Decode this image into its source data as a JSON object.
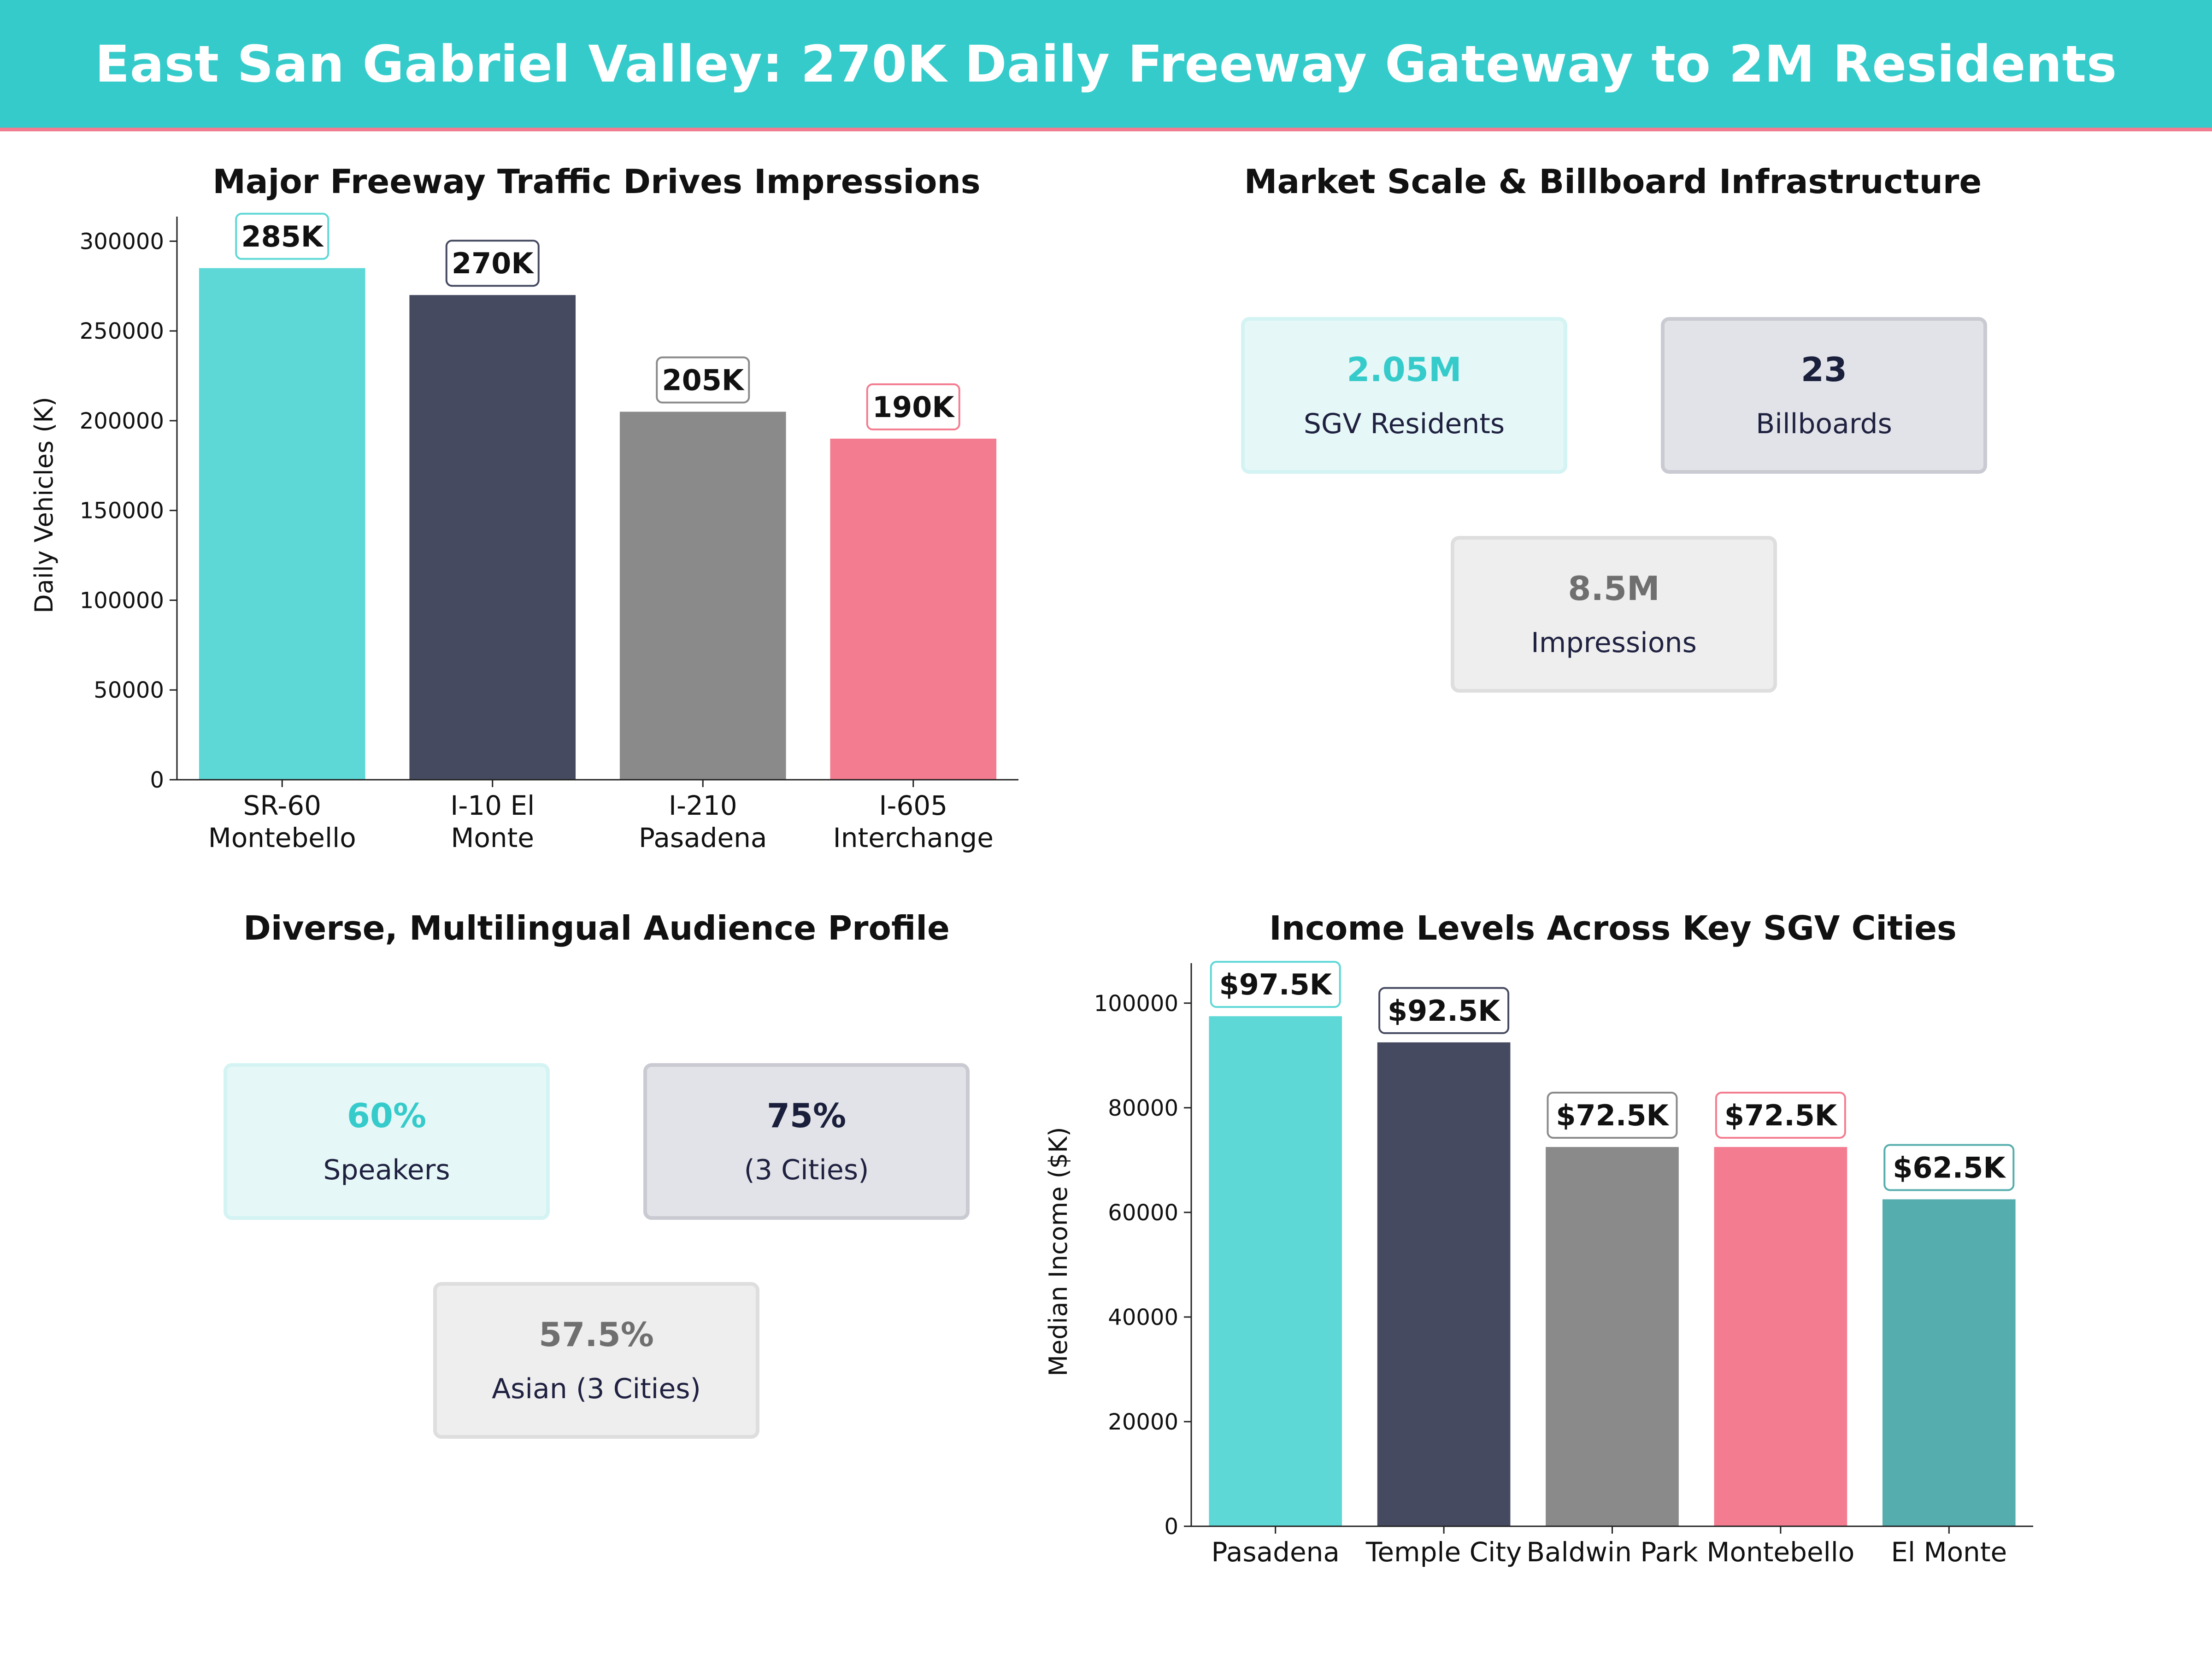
{
  "banner": {
    "title": "East San Gabriel Valley: 270K Daily Freeway Gateway to 2M Residents"
  },
  "colors": {
    "banner": "#36CBCB",
    "accent": "#F47C90"
  },
  "panels": {
    "market": {
      "title": "Market Scale & Billboard Infrastructure",
      "cards": [
        {
          "value": "2.05M",
          "label": "SGV Residents"
        },
        {
          "value": "23",
          "label": "Billboards"
        },
        {
          "value": "8.5M",
          "label": "Impressions"
        }
      ]
    },
    "audience": {
      "title": "Diverse, Multilingual Audience Profile",
      "cards": [
        {
          "value": "60%",
          "label": "Speakers"
        },
        {
          "value": "75%",
          "label": "(3 Cities)"
        },
        {
          "value": "57.5%",
          "label": "Asian (3 Cities)"
        }
      ]
    }
  },
  "chart_data": [
    {
      "id": "traffic",
      "type": "bar",
      "title": "Major Freeway Traffic Drives Impressions",
      "categories": [
        [
          "SR-60",
          "Montebello"
        ],
        [
          "I-10 El",
          "Monte"
        ],
        [
          "I-210",
          "Pasadena"
        ],
        [
          "I-605",
          "Interchange"
        ]
      ],
      "values": [
        285000,
        270000,
        205000,
        190000
      ],
      "data_labels": [
        "285K",
        "270K",
        "205K",
        "190K"
      ],
      "colors": [
        "#5DD8D6",
        "#464A60",
        "#8A8A8A",
        "#F47C90"
      ],
      "label_borders": [
        "#5DD8D6",
        "#464A60",
        "#8A8A8A",
        "#F47C90"
      ],
      "xlabel": "",
      "ylabel": "Daily Vehicles (K)",
      "ylim": [
        0,
        306000
      ],
      "yticks": [
        0,
        50000,
        100000,
        150000,
        200000,
        250000,
        300000
      ],
      "ytick_labels": [
        "0",
        "50000",
        "100000",
        "150000",
        "200000",
        "250000",
        "300000"
      ],
      "grid": false
    },
    {
      "id": "income",
      "type": "bar",
      "title": "Income Levels Across Key SGV Cities",
      "categories": [
        [
          "Pasadena"
        ],
        [
          "Temple City"
        ],
        [
          "Baldwin Park"
        ],
        [
          "Montebello"
        ],
        [
          "El Monte"
        ]
      ],
      "values": [
        97500,
        92500,
        72500,
        72500,
        62500
      ],
      "data_labels": [
        "$97.5K",
        "$92.5K",
        "$72.5K",
        "$72.5K",
        "$62.5K"
      ],
      "colors": [
        "#5DD8D6",
        "#464A60",
        "#8A8A8A",
        "#F47C90",
        "#56ADAD"
      ],
      "label_borders": [
        "#5DD8D6",
        "#464A60",
        "#8A8A8A",
        "#F47C90",
        "#56ADAD"
      ],
      "xlabel": "",
      "ylabel": "Median Income ($K)",
      "ylim": [
        0,
        105000
      ],
      "yticks": [
        0,
        20000,
        40000,
        60000,
        80000,
        100000
      ],
      "ytick_labels": [
        "0",
        "20000",
        "40000",
        "60000",
        "80000",
        "100000"
      ],
      "grid": false
    }
  ]
}
